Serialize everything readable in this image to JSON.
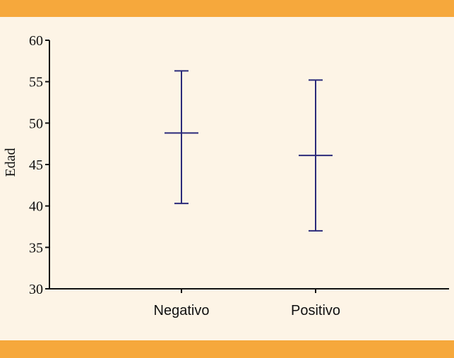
{
  "chart_data": {
    "type": "errorbar",
    "ylabel": "Edad",
    "xlabel": "",
    "ylim": [
      30,
      60
    ],
    "yticks": [
      30,
      35,
      40,
      45,
      50,
      55,
      60
    ],
    "categories": [
      "Negativo",
      "Positivo"
    ],
    "series": [
      {
        "mean": [
          48.8,
          46.1
        ],
        "lower": [
          40.3,
          37.0
        ],
        "upper": [
          56.3,
          55.2
        ]
      }
    ],
    "grid": false,
    "colors": {
      "errorbar": "#2b2b7a",
      "axis": "#111111",
      "band": "#f6a83c",
      "background": "#fdf4e6"
    }
  }
}
